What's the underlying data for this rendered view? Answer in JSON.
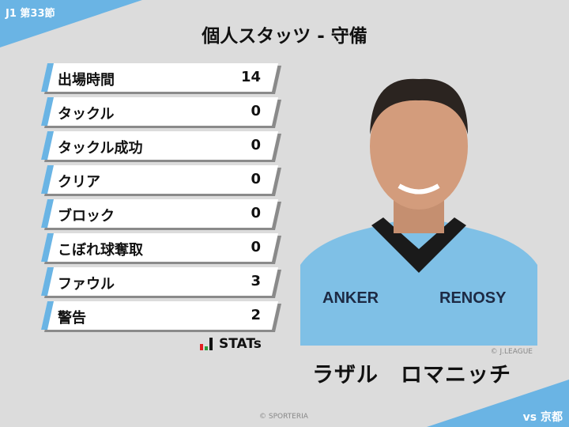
{
  "header": {
    "round": "J1 第33節",
    "title": "個人スタッツ - 守備"
  },
  "colors": {
    "accent": "#6ab4e4",
    "background": "#dcdcdc"
  },
  "stats": [
    {
      "label": "出場時間",
      "value": "14"
    },
    {
      "label": "タックル",
      "value": "0"
    },
    {
      "label": "タックル成功",
      "value": "0"
    },
    {
      "label": "クリア",
      "value": "0"
    },
    {
      "label": "ブロック",
      "value": "0"
    },
    {
      "label": "こぼれ球奪取",
      "value": "0"
    },
    {
      "label": "ファウル",
      "value": "3"
    },
    {
      "label": "警告",
      "value": "2"
    }
  ],
  "logo": {
    "text": "STATs"
  },
  "player": {
    "name": "ラザル　ロマニッチ",
    "photo_credit": "© J.LEAGUE",
    "sponsors": [
      "ANKER",
      "RENOSY"
    ]
  },
  "footer": {
    "copyright": "© SPORTERIA",
    "opponent": "vs 京都"
  }
}
